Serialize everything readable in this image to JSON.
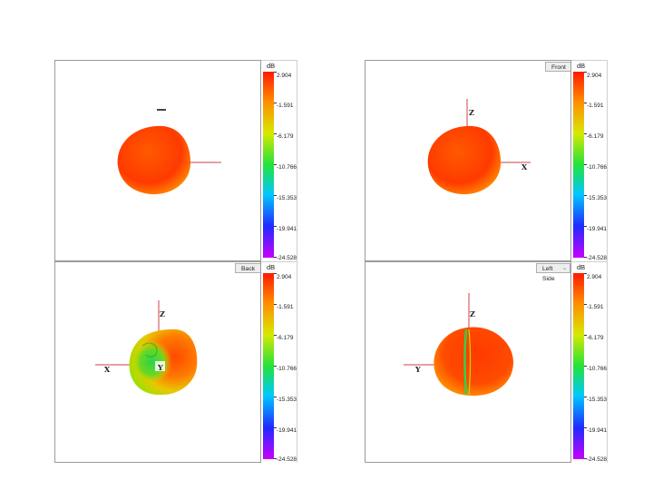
{
  "legend": {
    "unit": "dB",
    "ticks": [
      "2.904",
      "-1.591",
      "-6.179",
      "-10.766",
      "-15.353",
      "-19.941",
      "-24.528"
    ]
  },
  "views": [
    {
      "id": "top-left",
      "selector": "",
      "axes": []
    },
    {
      "id": "front",
      "selector": "Front",
      "axes": [
        "Z",
        "X"
      ]
    },
    {
      "id": "back",
      "selector": "Back",
      "axes": [
        "Z",
        "X",
        "Y"
      ]
    },
    {
      "id": "left-side",
      "selector": "Left Side",
      "axes": [
        "Z",
        "Y"
      ]
    }
  ]
}
